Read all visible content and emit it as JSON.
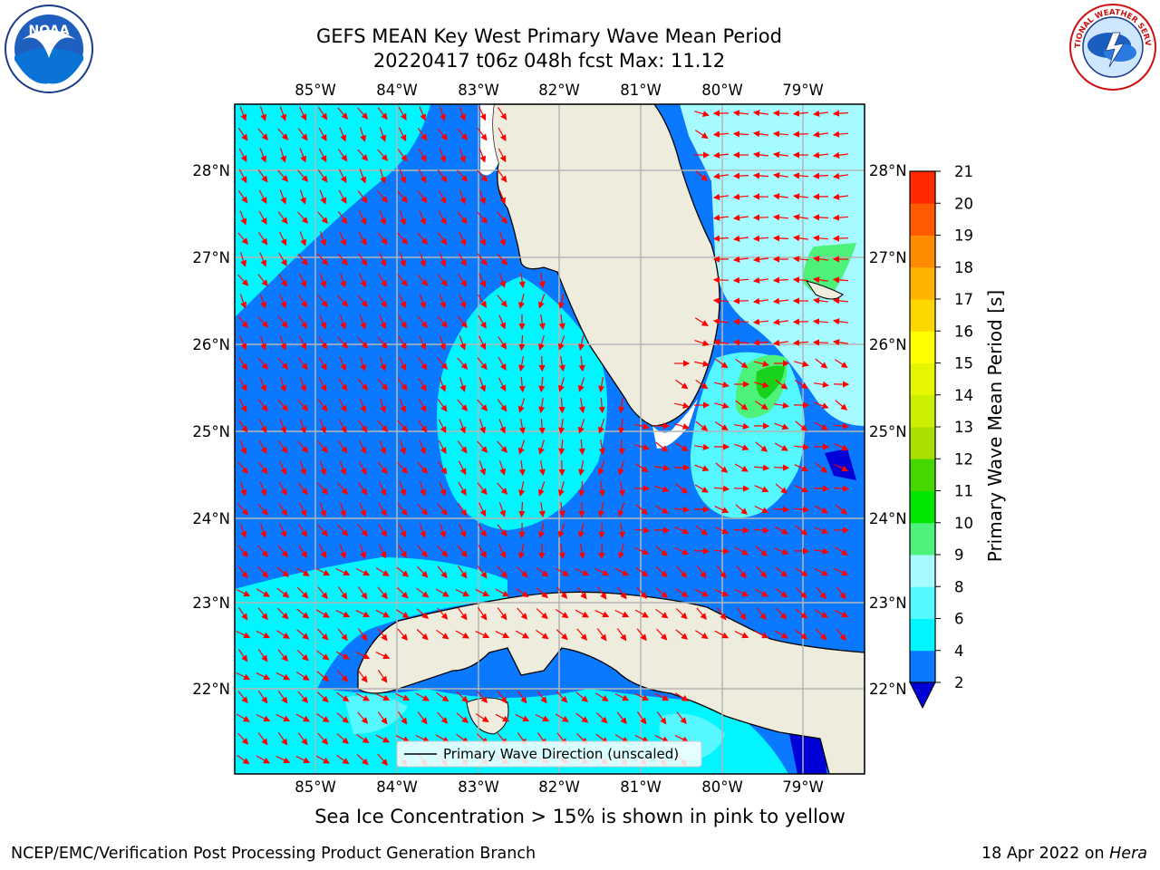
{
  "title": {
    "line1": "GEFS MEAN Key West Primary Wave Mean Period",
    "line2": "20220417 t06z 048h fcst   Max: 11.12"
  },
  "map": {
    "lon_labels": [
      "85°W",
      "84°W",
      "83°W",
      "82°W",
      "81°W",
      "80°W",
      "79°W"
    ],
    "lat_labels": [
      "28°N",
      "27°N",
      "26°N",
      "25°N",
      "24°N",
      "23°N",
      "22°N"
    ],
    "legend_text": "Primary Wave Direction (unscaled)",
    "colors": {
      "land": "#eeecdc",
      "band_2_4": "#0a78ff",
      "band_4_6": "#00f5ff",
      "band_6_8": "#55f8ff",
      "band_8_9": "#a5fbff",
      "band_9_10": "#4cf27a",
      "band_10_11": "#17d11b",
      "below_2": "#0000d6",
      "arrow": "#ff0000",
      "grid": "#b5b5b5"
    }
  },
  "colorbar": {
    "title": "Primary Wave Mean Period [s]",
    "ticks": [
      "2",
      "4",
      "6",
      "8",
      "9",
      "10",
      "11",
      "12",
      "13",
      "14",
      "15",
      "16",
      "17",
      "18",
      "19",
      "20",
      "21"
    ],
    "colors": [
      "#0a78ff",
      "#00f5ff",
      "#55f8ff",
      "#a5fbff",
      "#4cf27a",
      "#00e600",
      "#44d800",
      "#aade00",
      "#ccee00",
      "#e6f500",
      "#ffff00",
      "#ffd700",
      "#ffb300",
      "#ff8c00",
      "#ff5a00",
      "#ff2a00",
      "#ff0000"
    ],
    "extend_color": "#0000d6"
  },
  "subtitle": "Sea Ice Concentration > 15% is shown in pink to yellow",
  "footer": {
    "left": "NCEP/EMC/Verification Post Processing Product Generation Branch",
    "right_prefix": "18 Apr 2022 on ",
    "right_italic": "Hera"
  },
  "logos": {
    "left_text": "NOAA",
    "right_text": "NATIONAL WEATHER SERVICE"
  }
}
